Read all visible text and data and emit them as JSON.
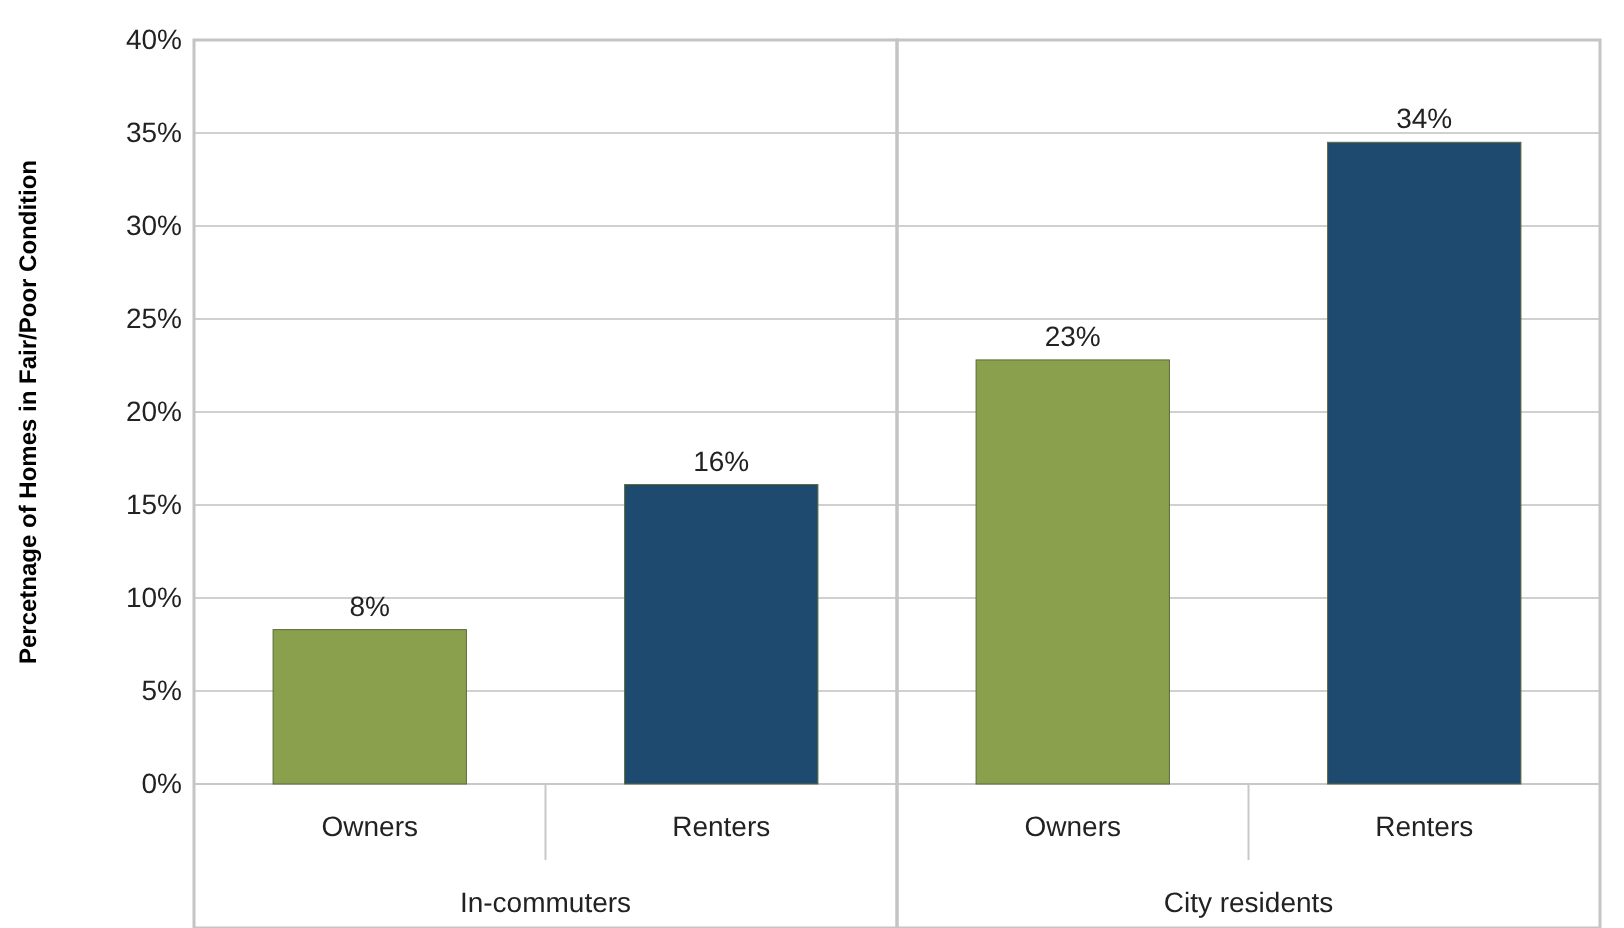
{
  "chart_data": {
    "type": "bar",
    "ylabel": "Percetnage of Homes in Fair/Poor Condition",
    "categories": [
      "Owners",
      "Renters",
      "Owners",
      "Renters"
    ],
    "values": [
      8.3,
      16.1,
      22.8,
      34.5
    ],
    "colors": [
      "#8aa04d",
      "#1f4a70",
      "#8aa04d",
      "#1f4a70"
    ],
    "value_labels": [
      "8%",
      "16%",
      "23%",
      "34%"
    ],
    "ylim": [
      0,
      40
    ],
    "yticks": [
      {
        "value": 0,
        "label": "0%"
      },
      {
        "value": 5,
        "label": "5%"
      },
      {
        "value": 10,
        "label": "10%"
      },
      {
        "value": 15,
        "label": "15%"
      },
      {
        "value": 20,
        "label": "20%"
      },
      {
        "value": 25,
        "label": "25%"
      },
      {
        "value": 30,
        "label": "30%"
      },
      {
        "value": 35,
        "label": "35%"
      },
      {
        "value": 40,
        "label": "40%"
      }
    ],
    "grid": "y",
    "annotations": [
      "In-commuters",
      "City residents"
    ]
  }
}
